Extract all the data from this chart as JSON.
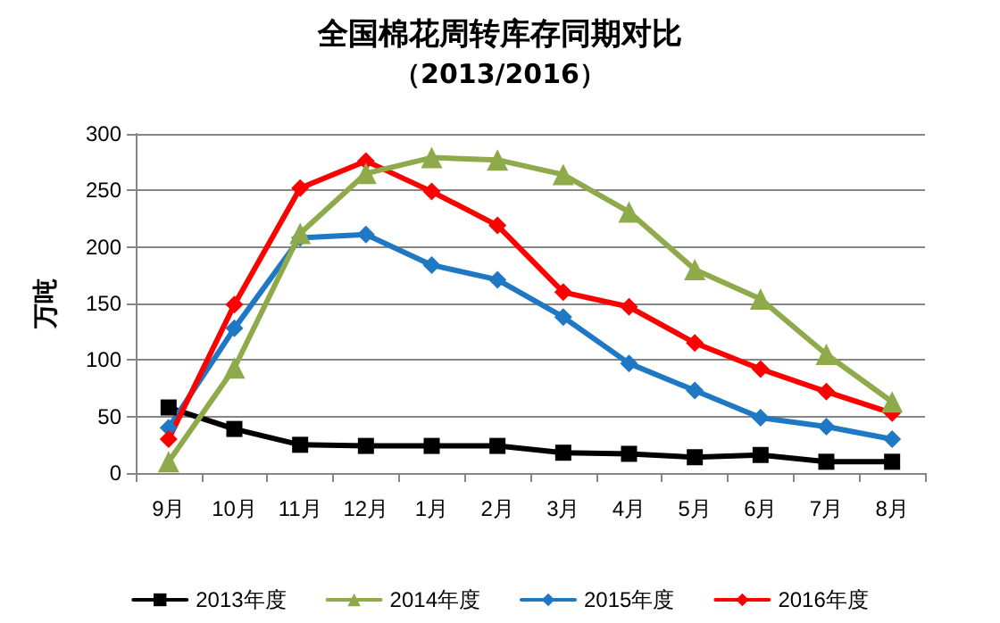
{
  "chart_data": {
    "type": "line",
    "title": "全国棉花周转库存同期对比",
    "subtitle": "（2013/2016）",
    "ylabel": "万吨",
    "categories": [
      "9月",
      "10月",
      "11月",
      "12月",
      "1月",
      "2月",
      "3月",
      "4月",
      "5月",
      "6月",
      "7月",
      "8月"
    ],
    "series": [
      {
        "name": "2013年度",
        "color": "#000000",
        "marker": "square",
        "values": [
          58,
          39,
          25,
          24,
          24,
          24,
          18,
          17,
          14,
          16,
          10,
          10
        ]
      },
      {
        "name": "2014年度",
        "color": "#8faa4a",
        "marker": "triangle",
        "values": [
          10,
          93,
          212,
          265,
          279,
          277,
          264,
          231,
          180,
          154,
          105,
          63
        ]
      },
      {
        "name": "2015年度",
        "color": "#1f78c4",
        "marker": "diamond",
        "values": [
          40,
          128,
          208,
          211,
          184,
          171,
          138,
          97,
          73,
          49,
          41,
          30
        ]
      },
      {
        "name": "2016年度",
        "color": "#ff0000",
        "marker": "diamond",
        "values": [
          30,
          149,
          252,
          276,
          249,
          219,
          160,
          147,
          115,
          92,
          72,
          53
        ]
      }
    ],
    "ylim": [
      0,
      300
    ],
    "yticks": [
      0,
      50,
      100,
      150,
      200,
      250,
      300
    ],
    "grid": "y",
    "legend": "bottom",
    "line_style": "solid"
  }
}
